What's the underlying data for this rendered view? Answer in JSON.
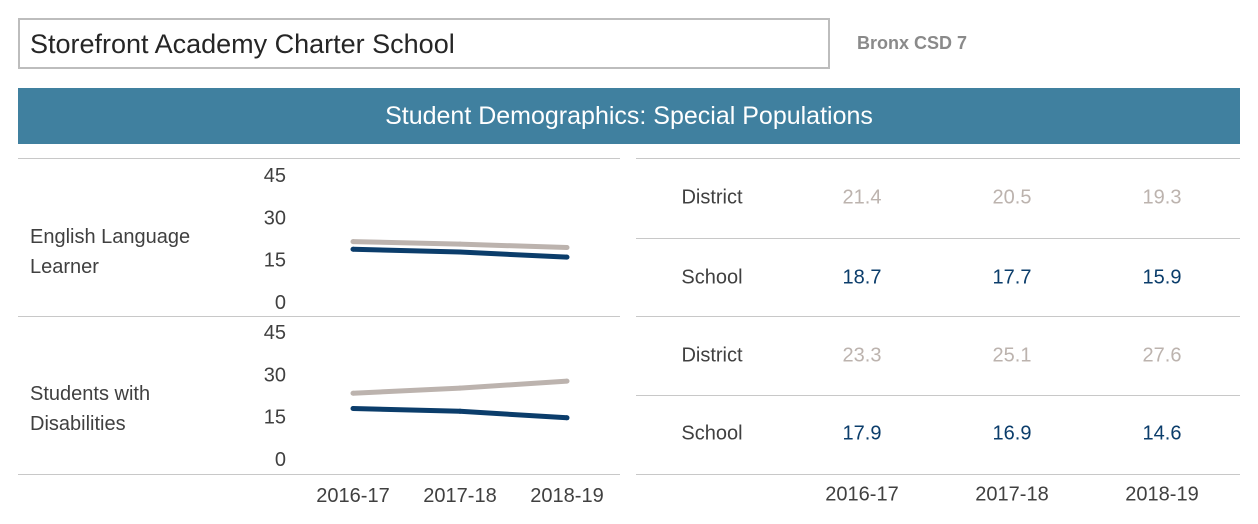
{
  "header": {
    "school_name": "Storefront Academy Charter School",
    "district": "Bronx CSD 7",
    "banner_title": "Student Demographics: Special Populations"
  },
  "colors": {
    "district": "#bcb3ae",
    "school": "#0b3d6b",
    "banner": "#40809f"
  },
  "years": [
    "2016-17",
    "2017-18",
    "2018-19"
  ],
  "chart_data": [
    {
      "type": "line",
      "title": "",
      "row_label_lines": [
        "English Language",
        "Learner"
      ],
      "categories": [
        "2016-17",
        "2017-18",
        "2018-19"
      ],
      "yticks": [
        0,
        15,
        30,
        45
      ],
      "ylim": [
        0,
        45
      ],
      "series": [
        {
          "name": "District",
          "values": [
            21.4,
            20.5,
            19.3
          ]
        },
        {
          "name": "School",
          "values": [
            18.7,
            17.7,
            15.9
          ]
        }
      ]
    },
    {
      "type": "line",
      "title": "",
      "row_label_lines": [
        "Students with",
        "Disabilities"
      ],
      "categories": [
        "2016-17",
        "2017-18",
        "2018-19"
      ],
      "yticks": [
        0,
        15,
        30,
        45
      ],
      "ylim": [
        0,
        45
      ],
      "series": [
        {
          "name": "District",
          "values": [
            23.3,
            25.1,
            27.6
          ]
        },
        {
          "name": "School",
          "values": [
            17.9,
            16.9,
            14.6
          ]
        }
      ]
    }
  ]
}
